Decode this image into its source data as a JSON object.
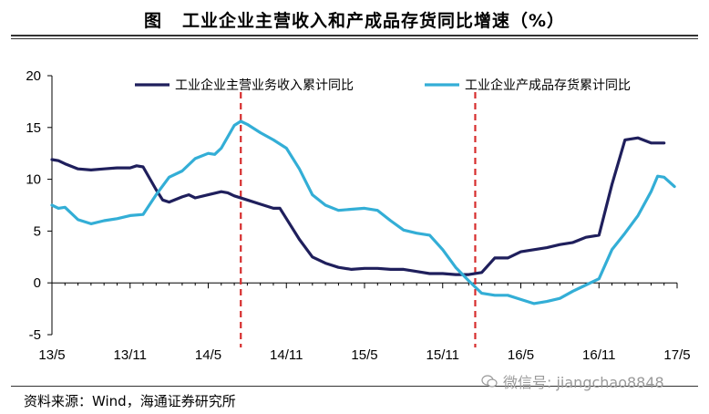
{
  "title_prefix": "图",
  "title": "工业企业主营收入和产成品存货同比增速（%）",
  "source": "资料来源：Wind，海通证券研究所",
  "watermark": "微信号: jiangchao8848",
  "colors": {
    "revenue": "#1f1f5c",
    "inventory": "#33aed6",
    "marker": "#d62d2d",
    "axis": "#000000"
  },
  "chart_data": {
    "type": "line",
    "title": "工业企业主营收入和产成品存货同比增速（%）",
    "xlabel": "",
    "ylabel": "",
    "ylim": [
      -5,
      20
    ],
    "yticks": [
      -5,
      0,
      5,
      10,
      15,
      20
    ],
    "x_ticks": [
      "13/5",
      "13/11",
      "14/5",
      "14/11",
      "15/5",
      "15/11",
      "16/5",
      "16/11",
      "17/5"
    ],
    "x_range": [
      0,
      48
    ],
    "legend_position": "top",
    "grid": false,
    "vertical_markers": [
      14.5,
      32.5
    ],
    "series": [
      {
        "name": "工业企业主营业务收入累计同比",
        "color": "#1f1f5c",
        "points": [
          [
            0,
            11.9
          ],
          [
            0.5,
            11.8
          ],
          [
            1,
            11.5
          ],
          [
            2,
            11.0
          ],
          [
            3,
            10.9
          ],
          [
            4,
            11.0
          ],
          [
            5,
            11.1
          ],
          [
            6,
            11.1
          ],
          [
            6.5,
            11.3
          ],
          [
            7,
            11.2
          ],
          [
            8,
            9.0
          ],
          [
            8.5,
            8.0
          ],
          [
            9,
            7.8
          ],
          [
            10,
            8.3
          ],
          [
            10.5,
            8.5
          ],
          [
            11,
            8.2
          ],
          [
            12,
            8.5
          ],
          [
            13,
            8.8
          ],
          [
            13.5,
            8.7
          ],
          [
            14,
            8.4
          ],
          [
            15,
            8.0
          ],
          [
            16,
            7.6
          ],
          [
            17,
            7.2
          ],
          [
            17.5,
            7.2
          ],
          [
            18,
            6.2
          ],
          [
            19,
            4.2
          ],
          [
            20,
            2.5
          ],
          [
            21,
            1.9
          ],
          [
            22,
            1.5
          ],
          [
            23,
            1.3
          ],
          [
            24,
            1.4
          ],
          [
            25,
            1.4
          ],
          [
            26,
            1.3
          ],
          [
            27,
            1.3
          ],
          [
            28,
            1.1
          ],
          [
            29,
            0.9
          ],
          [
            30,
            0.9
          ],
          [
            31,
            0.8
          ],
          [
            32,
            0.8
          ],
          [
            33,
            1.0
          ],
          [
            34,
            2.4
          ],
          [
            35,
            2.4
          ],
          [
            36,
            3.0
          ],
          [
            37,
            3.2
          ],
          [
            38,
            3.4
          ],
          [
            39,
            3.7
          ],
          [
            40,
            3.9
          ],
          [
            41,
            4.4
          ],
          [
            42,
            4.6
          ],
          [
            43,
            9.5
          ],
          [
            44,
            13.8
          ],
          [
            45,
            14.0
          ],
          [
            46,
            13.5
          ],
          [
            47,
            13.5
          ]
        ]
      },
      {
        "name": "工业企业产成品存货累计同比",
        "color": "#33aed6",
        "points": [
          [
            0,
            7.5
          ],
          [
            0.5,
            7.2
          ],
          [
            1,
            7.3
          ],
          [
            2,
            6.1
          ],
          [
            3,
            5.7
          ],
          [
            4,
            6.0
          ],
          [
            5,
            6.2
          ],
          [
            6,
            6.5
          ],
          [
            7,
            6.6
          ],
          [
            8,
            8.5
          ],
          [
            9,
            10.2
          ],
          [
            10,
            10.8
          ],
          [
            11,
            12.0
          ],
          [
            12,
            12.5
          ],
          [
            12.5,
            12.4
          ],
          [
            13,
            13.0
          ],
          [
            14,
            15.2
          ],
          [
            14.5,
            15.6
          ],
          [
            15,
            15.3
          ],
          [
            16,
            14.5
          ],
          [
            17,
            13.8
          ],
          [
            18,
            13.0
          ],
          [
            19,
            11.0
          ],
          [
            20,
            8.5
          ],
          [
            21,
            7.5
          ],
          [
            22,
            7.0
          ],
          [
            23,
            7.1
          ],
          [
            24,
            7.2
          ],
          [
            25,
            7.0
          ],
          [
            26,
            6.0
          ],
          [
            27,
            5.1
          ],
          [
            28,
            4.8
          ],
          [
            29,
            4.6
          ],
          [
            30,
            3.2
          ],
          [
            31,
            1.5
          ],
          [
            32,
            0.2
          ],
          [
            33,
            -1.0
          ],
          [
            34,
            -1.2
          ],
          [
            35,
            -1.2
          ],
          [
            36,
            -1.6
          ],
          [
            37,
            -2.0
          ],
          [
            38,
            -1.8
          ],
          [
            39,
            -1.5
          ],
          [
            40,
            -0.8
          ],
          [
            41,
            -0.2
          ],
          [
            42,
            0.4
          ],
          [
            43,
            3.2
          ],
          [
            44,
            4.8
          ],
          [
            45,
            6.5
          ],
          [
            46,
            8.8
          ],
          [
            46.5,
            10.3
          ],
          [
            47,
            10.2
          ],
          [
            47.8,
            9.3
          ]
        ]
      }
    ]
  }
}
